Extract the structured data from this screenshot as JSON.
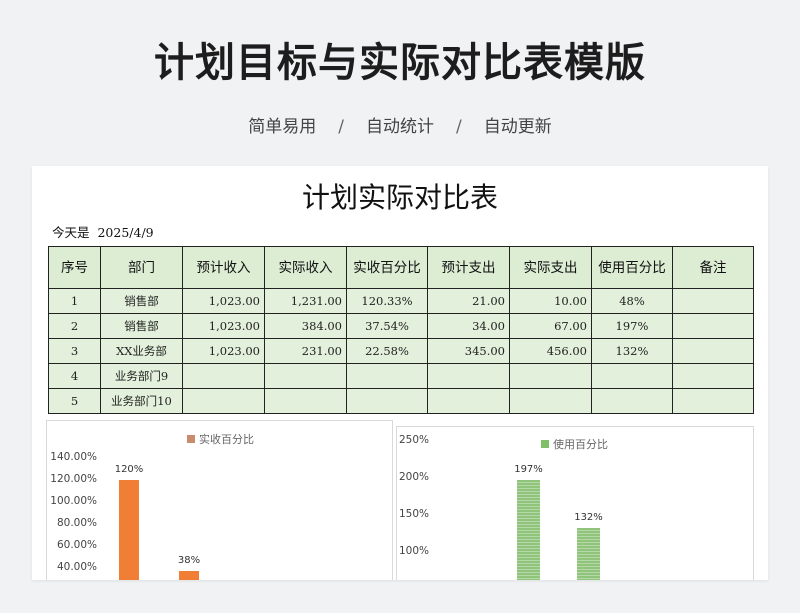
{
  "header": {
    "title": "计划目标与实际对比表模版",
    "tags": [
      "简单易用",
      "自动统计",
      "自动更新"
    ],
    "separator": "/"
  },
  "sheet": {
    "title": "计划实际对比表",
    "today_label": "今天是",
    "today_value": "2025/4/9",
    "columns": [
      "序号",
      "部门",
      "预计收入",
      "实际收入",
      "实收百分比",
      "预计支出",
      "实际支出",
      "使用百分比",
      "备注"
    ],
    "rows": [
      [
        "1",
        "销售部",
        "1,023.00",
        "1,231.00",
        "120.33%",
        "21.00",
        "10.00",
        "48%",
        ""
      ],
      [
        "2",
        "销售部",
        "1,023.00",
        "384.00",
        "37.54%",
        "34.00",
        "67.00",
        "197%",
        ""
      ],
      [
        "3",
        "XX业务部",
        "1,023.00",
        "231.00",
        "22.58%",
        "345.00",
        "456.00",
        "132%",
        ""
      ],
      [
        "4",
        "业务部门9",
        "",
        "",
        "",
        "",
        "",
        "",
        ""
      ],
      [
        "5",
        "业务部门10",
        "",
        "",
        "",
        "",
        "",
        "",
        ""
      ]
    ]
  },
  "chart_data": [
    {
      "type": "bar",
      "series": [
        {
          "name": "实收百分比",
          "values": [
            120.33,
            37.54
          ]
        }
      ],
      "data_labels": [
        "120%",
        "38%"
      ],
      "y_ticks": [
        "140.00%",
        "120.00%",
        "100.00%",
        "80.00%",
        "60.00%",
        "40.00%"
      ],
      "ylim": [
        40,
        140
      ],
      "color": "#f07f35",
      "legend_color": "#c98b6e",
      "legend": "top"
    },
    {
      "type": "bar",
      "series": [
        {
          "name": "使用百分比",
          "values": [
            197,
            132
          ]
        }
      ],
      "data_labels": [
        "197%",
        "132%"
      ],
      "y_ticks": [
        "250%",
        "200%",
        "150%",
        "100%"
      ],
      "ylim": [
        100,
        250
      ],
      "color": "#8fc47a",
      "legend_color": "#7fbf6a",
      "legend": "top"
    }
  ]
}
